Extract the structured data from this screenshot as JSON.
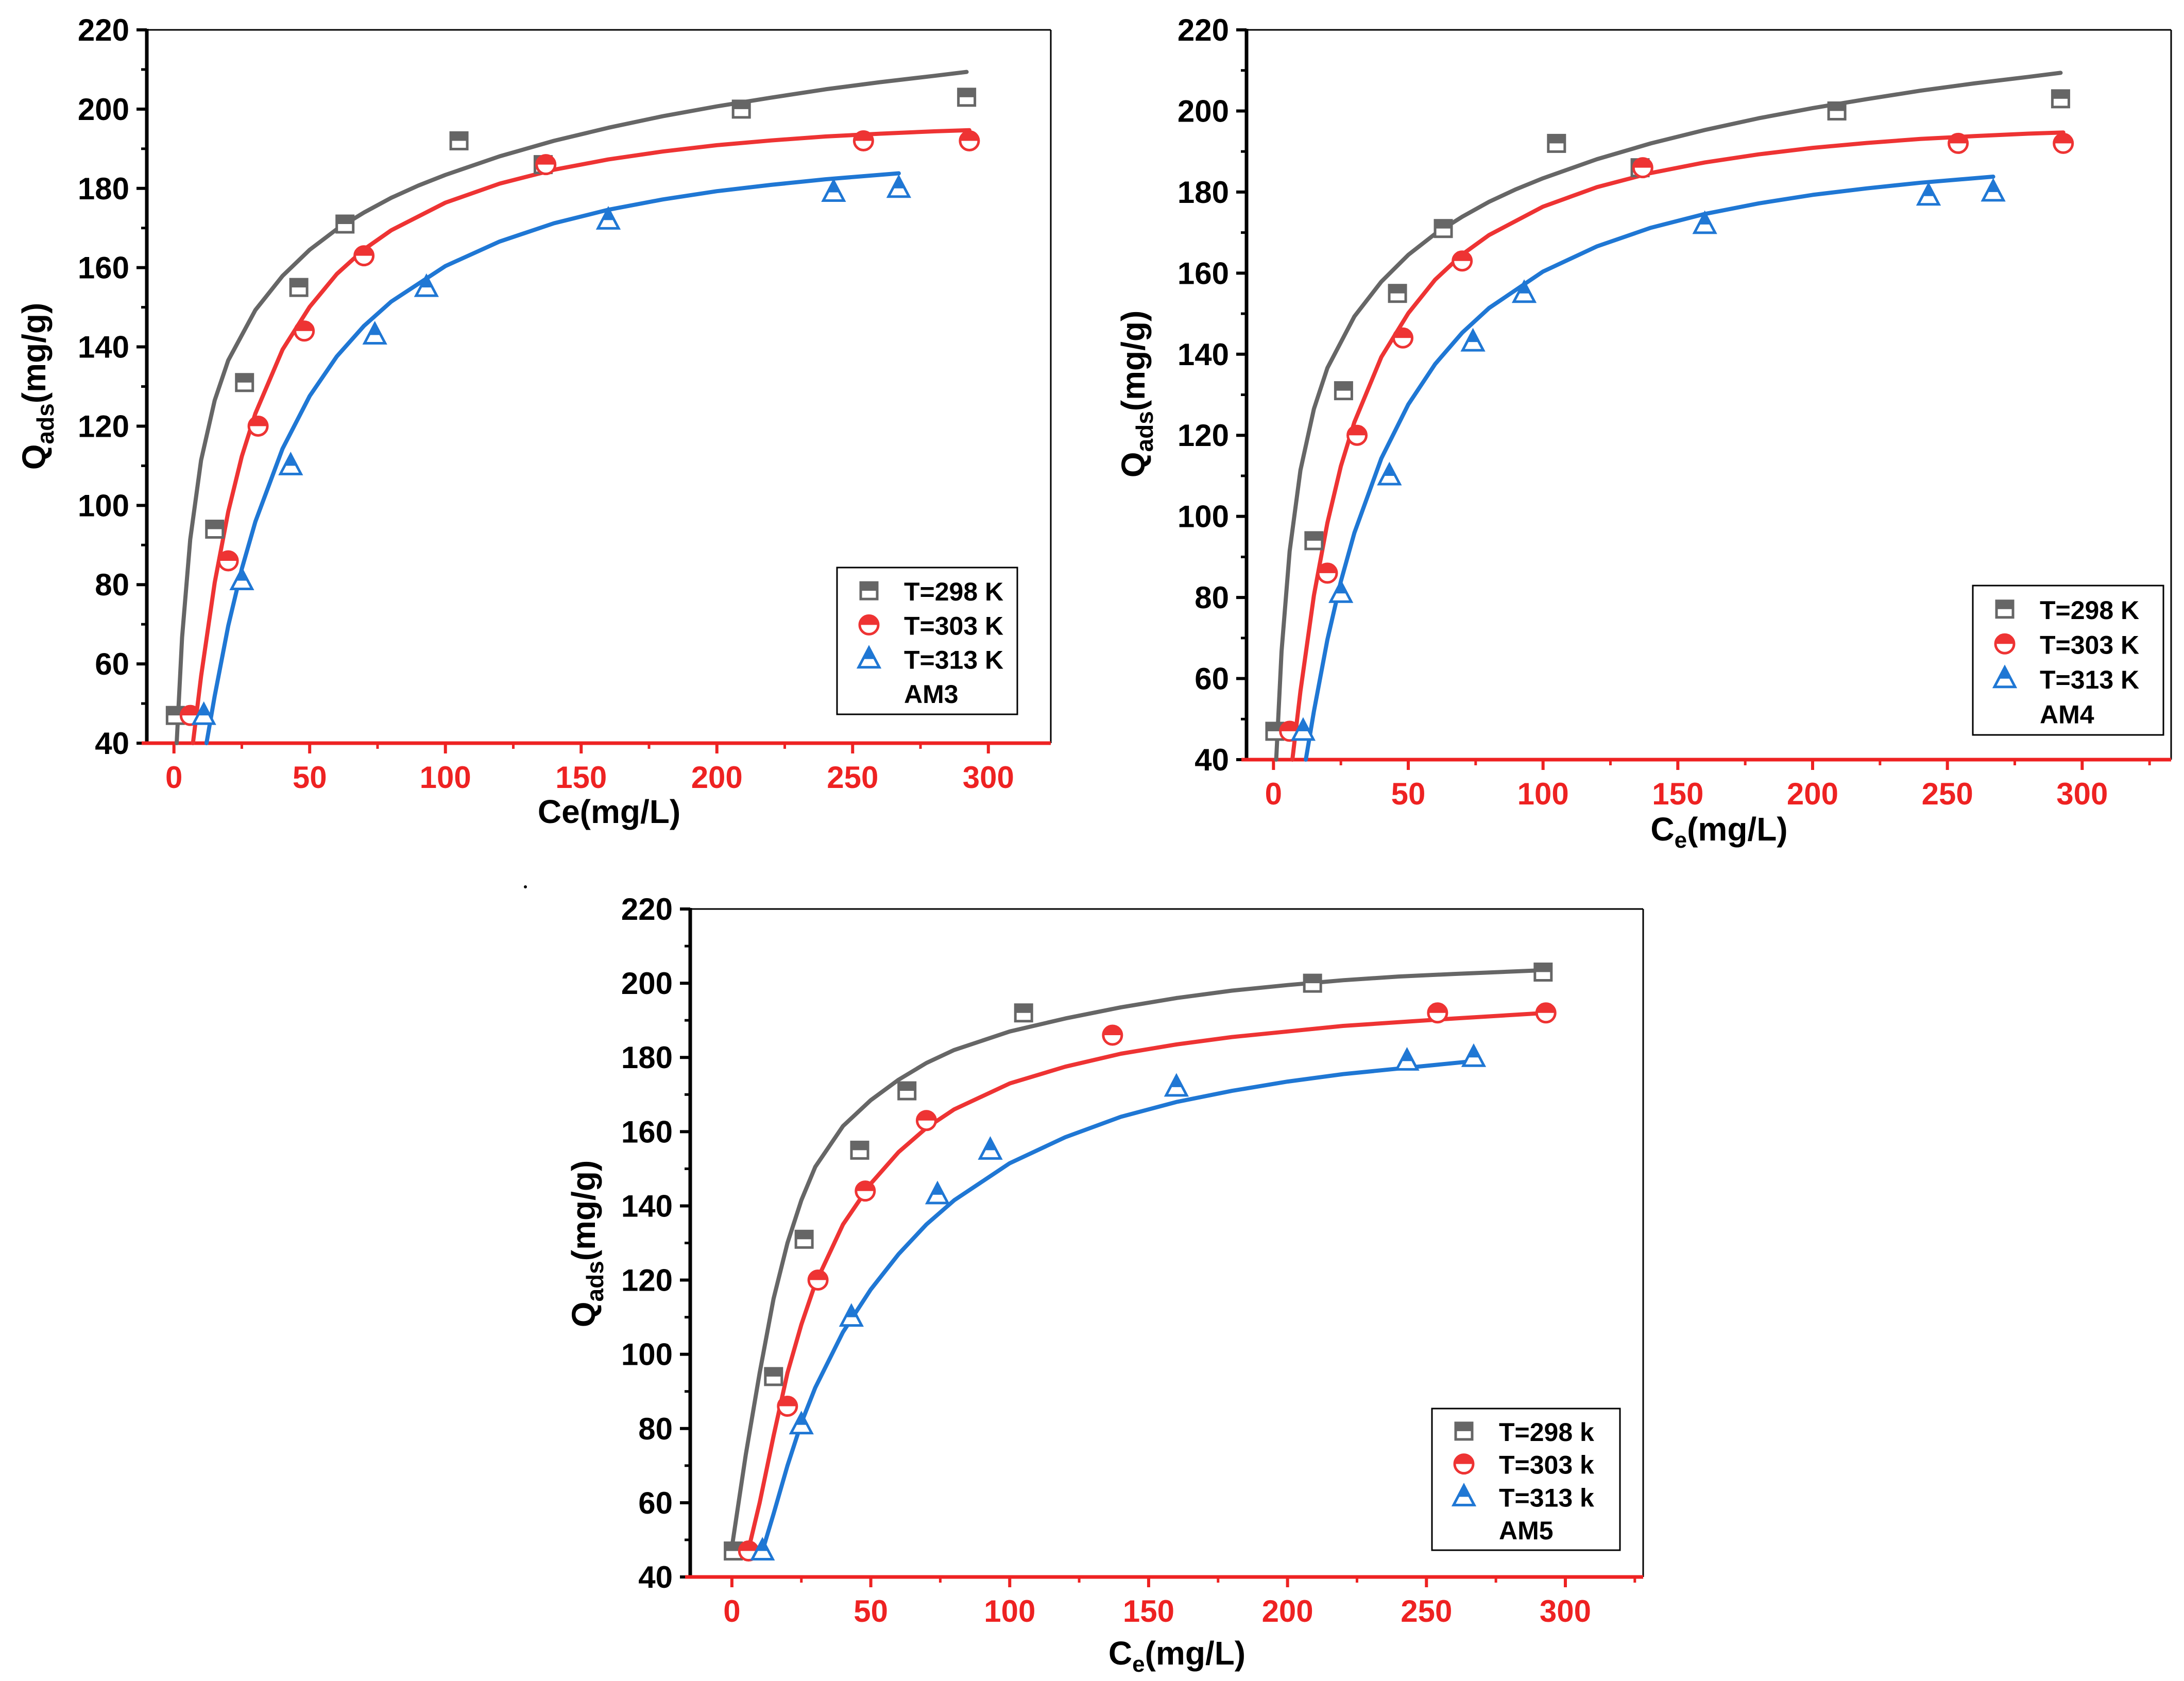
{
  "chart_data": [
    {
      "type": "scatter",
      "panel_label": "AM3",
      "xlabel": "Ce(mg/L)",
      "xlabel_main": "Ce",
      "xlabel_sub": "",
      "xlabel_tail": "(mg/L)",
      "ylabel_main": "Q",
      "ylabel_sub": "ads",
      "ylabel_tail": "(mg/g)",
      "xlim": [
        -10,
        323
      ],
      "ylim": [
        40,
        220
      ],
      "xticks": [
        0,
        50,
        100,
        150,
        200,
        250,
        300
      ],
      "yticks": [
        40,
        60,
        80,
        100,
        120,
        140,
        160,
        180,
        200,
        220
      ],
      "legend_position": "bottom-right",
      "series": [
        {
          "name": "T=298 K",
          "marker": "square",
          "color": "#666666",
          "x": [
            0.5,
            15,
            26,
            46,
            63,
            105,
            136,
            209,
            292
          ],
          "y": [
            47,
            94,
            131,
            155,
            171,
            192,
            186,
            200,
            203
          ],
          "fit_x": [
            1,
            3,
            6,
            10,
            15,
            20,
            30,
            40,
            50,
            60,
            70,
            80,
            90,
            100,
            120,
            140,
            160,
            180,
            200,
            220,
            240,
            260,
            280,
            292
          ],
          "fit_y": [
            40,
            66.7,
            91.4,
            111.4,
            126.5,
            136.6,
            149.3,
            157.9,
            164.5,
            169.7,
            173.9,
            177.6,
            180.7,
            183.4,
            188.1,
            192.0,
            195.3,
            198.2,
            200.7,
            202.9,
            205.0,
            206.8,
            208.4,
            209.4
          ]
        },
        {
          "name": "T=303 K",
          "marker": "circle",
          "color": "#ee3333",
          "x": [
            6,
            20,
            31,
            48,
            70,
            137,
            254,
            293
          ],
          "y": [
            47,
            86,
            120,
            144,
            163,
            186,
            192,
            192
          ],
          "fit_x": [
            7,
            10,
            15,
            20,
            25,
            30,
            40,
            50,
            60,
            70,
            80,
            100,
            120,
            140,
            160,
            180,
            200,
            220,
            240,
            260,
            280,
            293
          ],
          "fit_y": [
            40,
            56.9,
            80.5,
            98.4,
            112.4,
            123.2,
            139.3,
            150.1,
            158.4,
            164.6,
            169.4,
            176.4,
            181.2,
            184.7,
            187.3,
            189.3,
            190.9,
            192.1,
            193.1,
            193.8,
            194.4,
            194.7
          ]
        },
        {
          "name": "T=313 K",
          "marker": "triangle",
          "color": "#1f77d4",
          "x": [
            11,
            25,
            43,
            74,
            93,
            160,
            243,
            267
          ],
          "y": [
            47,
            81,
            110,
            143,
            155,
            172,
            179,
            180
          ],
          "fit_x": [
            12,
            15,
            20,
            25,
            30,
            40,
            50,
            60,
            70,
            80,
            100,
            120,
            140,
            160,
            180,
            200,
            220,
            240,
            267
          ],
          "fit_y": [
            40,
            51.9,
            69.6,
            84.0,
            95.9,
            114.3,
            127.6,
            137.6,
            145.3,
            151.4,
            160.4,
            166.6,
            171.2,
            174.6,
            177.2,
            179.3,
            180.9,
            182.3,
            183.8
          ]
        }
      ]
    },
    {
      "type": "scatter",
      "panel_label": "AM4",
      "xlabel": "Ce(mg/L)",
      "xlabel_main": "C",
      "xlabel_sub": "e",
      "xlabel_tail": "(mg/L)",
      "ylabel_main": "Q",
      "ylabel_sub": "ads",
      "ylabel_tail": "(mg/g)",
      "xlim": [
        -10,
        333
      ],
      "ylim": [
        40,
        220
      ],
      "xticks": [
        0,
        50,
        100,
        150,
        200,
        250,
        300
      ],
      "yticks": [
        40,
        60,
        80,
        100,
        120,
        140,
        160,
        180,
        200,
        220
      ],
      "legend_position": "bottom-right",
      "series": [
        {
          "name": "T=298 K",
          "marker": "square",
          "color": "#666666",
          "x": [
            0.5,
            15,
            26,
            46,
            63,
            105,
            136,
            209,
            292
          ],
          "y": [
            47,
            94,
            131,
            155,
            171,
            192,
            186,
            200,
            203
          ],
          "fit_x": [
            1,
            3,
            6,
            10,
            15,
            20,
            30,
            40,
            50,
            60,
            70,
            80,
            90,
            100,
            120,
            140,
            160,
            180,
            200,
            220,
            240,
            260,
            280,
            292
          ],
          "fit_y": [
            40,
            66.7,
            91.4,
            111.4,
            126.5,
            136.6,
            149.3,
            157.9,
            164.5,
            169.7,
            173.9,
            177.6,
            180.7,
            183.4,
            188.1,
            192.0,
            195.3,
            198.2,
            200.7,
            202.9,
            205.0,
            206.8,
            208.4,
            209.4
          ]
        },
        {
          "name": "T=303 K",
          "marker": "circle",
          "color": "#ee3333",
          "x": [
            6,
            20,
            31,
            48,
            70,
            137,
            254,
            293
          ],
          "y": [
            47,
            86,
            120,
            144,
            163,
            186,
            192,
            192
          ],
          "fit_x": [
            7,
            10,
            15,
            20,
            25,
            30,
            40,
            50,
            60,
            70,
            80,
            100,
            120,
            140,
            160,
            180,
            200,
            220,
            240,
            260,
            280,
            293
          ],
          "fit_y": [
            40,
            56.9,
            80.5,
            98.4,
            112.4,
            123.2,
            139.3,
            150.1,
            158.4,
            164.6,
            169.4,
            176.4,
            181.2,
            184.7,
            187.3,
            189.3,
            190.9,
            192.1,
            193.1,
            193.8,
            194.4,
            194.7
          ]
        },
        {
          "name": "T=313 K",
          "marker": "triangle",
          "color": "#1f77d4",
          "x": [
            11,
            25,
            43,
            74,
            93,
            160,
            243,
            267
          ],
          "y": [
            47,
            81,
            110,
            143,
            155,
            172,
            179,
            180
          ],
          "fit_x": [
            12,
            15,
            20,
            25,
            30,
            40,
            50,
            60,
            70,
            80,
            100,
            120,
            140,
            160,
            180,
            200,
            220,
            240,
            267
          ],
          "fit_y": [
            40,
            51.9,
            69.6,
            84.0,
            95.9,
            114.3,
            127.6,
            137.6,
            145.3,
            151.4,
            160.4,
            166.6,
            171.2,
            174.6,
            177.2,
            179.3,
            180.9,
            182.3,
            183.8
          ]
        }
      ]
    },
    {
      "type": "scatter",
      "panel_label": "AM5",
      "xlabel": "Ce(mg/L)",
      "xlabel_main": "C",
      "xlabel_sub": "e",
      "xlabel_tail": "(mg/L)",
      "ylabel_main": "Q",
      "ylabel_sub": "ads",
      "ylabel_tail": "(mg/g)",
      "xlim": [
        -15,
        328
      ],
      "ylim": [
        40,
        220
      ],
      "xticks": [
        0,
        50,
        100,
        150,
        200,
        250,
        300
      ],
      "yticks": [
        40,
        60,
        80,
        100,
        120,
        140,
        160,
        180,
        200,
        220
      ],
      "legend_position": "bottom-right",
      "series": [
        {
          "name": "T=298 k",
          "marker": "square",
          "color": "#666666",
          "x": [
            0.5,
            15,
            26,
            46,
            63,
            105,
            209,
            292
          ],
          "y": [
            47,
            94,
            131,
            155,
            171,
            192,
            200,
            203
          ],
          "fit_x": [
            0,
            5,
            10,
            15,
            20,
            25,
            30,
            40,
            50,
            60,
            70,
            80,
            100,
            120,
            140,
            160,
            180,
            200,
            220,
            240,
            260,
            292
          ],
          "fit_y": [
            48,
            73,
            95,
            115,
            130,
            141.5,
            150.5,
            161.5,
            168.5,
            174,
            178.5,
            182,
            187,
            190.5,
            193.5,
            196,
            198,
            199.5,
            200.8,
            201.8,
            202.5,
            203.5
          ]
        },
        {
          "name": "T=303 k",
          "marker": "circle",
          "color": "#ee3333",
          "x": [
            6,
            20,
            31,
            48,
            70,
            137,
            254,
            293
          ],
          "y": [
            47,
            86,
            120,
            144,
            163,
            186,
            192,
            192
          ],
          "fit_x": [
            6,
            10,
            15,
            20,
            25,
            30,
            40,
            50,
            60,
            70,
            80,
            100,
            120,
            140,
            160,
            180,
            200,
            220,
            240,
            260,
            293
          ],
          "fit_y": [
            47.5,
            60,
            78,
            95,
            108,
            119,
            135,
            146,
            154.5,
            161,
            166,
            173,
            177.5,
            181,
            183.5,
            185.5,
            187,
            188.5,
            189.5,
            190.5,
            192
          ]
        },
        {
          "name": "T=313 k",
          "marker": "triangle",
          "color": "#1f77d4",
          "x": [
            11,
            25,
            43,
            74,
            93,
            160,
            243,
            267
          ],
          "y": [
            47,
            81,
            110,
            143,
            155,
            172,
            179,
            180
          ],
          "fit_x": [
            11,
            15,
            20,
            25,
            30,
            40,
            50,
            60,
            70,
            80,
            100,
            120,
            140,
            160,
            180,
            200,
            220,
            240,
            267
          ],
          "fit_y": [
            47,
            57,
            70,
            81.5,
            91,
            106,
            117.5,
            127,
            135,
            141.5,
            151.5,
            158.5,
            164,
            168,
            171,
            173.5,
            175.5,
            177,
            179
          ]
        }
      ]
    }
  ]
}
